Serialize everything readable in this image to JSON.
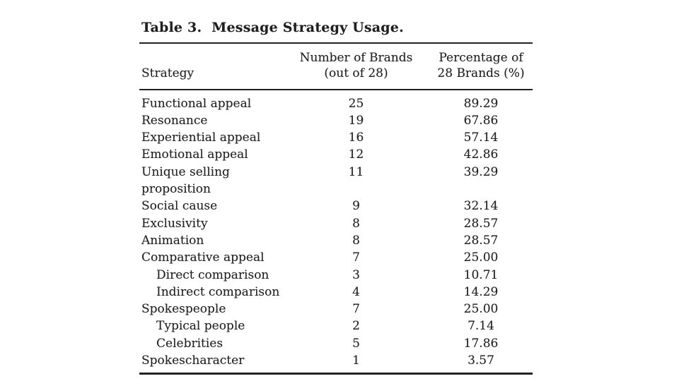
{
  "page": {
    "background": "#ffffff",
    "ink_color": "#1f1f1f",
    "rule_color": "#222222"
  },
  "table": {
    "label": "Table 3.",
    "caption": "Message Strategy Usage.",
    "header": {
      "strategy": "Strategy",
      "brands_line1": "Number of Brands",
      "brands_line2": "(out of 28)",
      "pct_line1": "Percentage of",
      "pct_line2": "28 Brands (%)"
    },
    "rows": [
      {
        "strategy": "Functional appeal",
        "sub": false,
        "brands": "25",
        "pct": "89.29"
      },
      {
        "strategy": "Resonance",
        "sub": false,
        "brands": "19",
        "pct": "67.86"
      },
      {
        "strategy": "Experiential appeal",
        "sub": false,
        "brands": "16",
        "pct": "57.14"
      },
      {
        "strategy": "Emotional appeal",
        "sub": false,
        "brands": "12",
        "pct": "42.86"
      },
      {
        "strategy": "Unique selling\nproposition",
        "sub": false,
        "brands": "11",
        "pct": "39.29"
      },
      {
        "strategy": "Social cause",
        "sub": false,
        "brands": "9",
        "pct": "32.14"
      },
      {
        "strategy": "Exclusivity",
        "sub": false,
        "brands": "8",
        "pct": "28.57"
      },
      {
        "strategy": "Animation",
        "sub": false,
        "brands": "8",
        "pct": "28.57"
      },
      {
        "strategy": "Comparative appeal",
        "sub": false,
        "brands": "7",
        "pct": "25.00"
      },
      {
        "strategy": "Direct comparison",
        "sub": true,
        "brands": "3",
        "pct": "10.71"
      },
      {
        "strategy": "Indirect comparison",
        "sub": true,
        "brands": "4",
        "pct": "14.29"
      },
      {
        "strategy": "Spokespeople",
        "sub": false,
        "brands": "7",
        "pct": "25.00"
      },
      {
        "strategy": "Typical people",
        "sub": true,
        "brands": "2",
        "pct": "7.14"
      },
      {
        "strategy": "Celebrities",
        "sub": true,
        "brands": "5",
        "pct": "17.86"
      },
      {
        "strategy": "Spokescharacter",
        "sub": false,
        "brands": "1",
        "pct": "3.57"
      }
    ]
  }
}
